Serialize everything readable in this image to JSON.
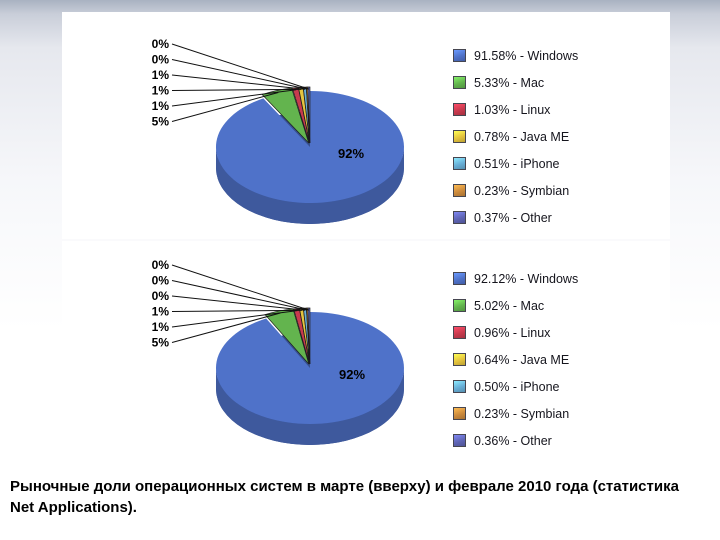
{
  "caption": "Рыночные доли операционных систем в марте (вверху) и феврале 2010 года (статистика Net Applications).",
  "chart_data": [
    {
      "type": "pie",
      "labels": [
        "Windows",
        "Mac",
        "Linux",
        "Java ME",
        "iPhone",
        "Symbian",
        "Other"
      ],
      "values": [
        91.58,
        5.33,
        1.03,
        0.78,
        0.51,
        0.23,
        0.37
      ],
      "legend_labels": [
        "91.58% - Windows",
        "5.33% - Mac",
        "1.03% - Linux",
        "0.78% - Java ME",
        "0.51% - iPhone",
        "0.23% - Symbian",
        "0.37% - Other"
      ],
      "colors": [
        "#4f72c9",
        "#63b44e",
        "#c83a4e",
        "#e5c43e",
        "#68aed6",
        "#cd8b3d",
        "#5f65b5"
      ],
      "big_slice_label": "92%",
      "callout_labels": [
        "0%",
        "0%",
        "1%",
        "1%",
        "1%",
        "5%"
      ],
      "legend_position": "right"
    },
    {
      "type": "pie",
      "labels": [
        "Windows",
        "Mac",
        "Linux",
        "Java ME",
        "iPhone",
        "Symbian",
        "Other"
      ],
      "values": [
        92.12,
        5.02,
        0.96,
        0.64,
        0.5,
        0.23,
        0.36
      ],
      "legend_labels": [
        "92.12% - Windows",
        "5.02% - Mac",
        "0.96% - Linux",
        "0.64% - Java ME",
        "0.50% - iPhone",
        "0.23% - Symbian",
        "0.36% - Other"
      ],
      "colors": [
        "#4f72c9",
        "#63b44e",
        "#c83a4e",
        "#e5c43e",
        "#68aed6",
        "#cd8b3d",
        "#5f65b5"
      ],
      "big_slice_label": "92%",
      "callout_labels": [
        "0%",
        "0%",
        "0%",
        "1%",
        "1%",
        "5%"
      ],
      "legend_position": "right"
    }
  ]
}
